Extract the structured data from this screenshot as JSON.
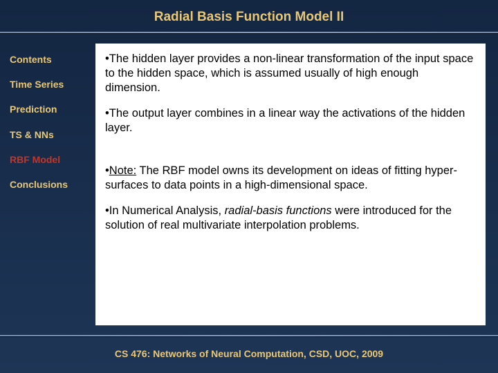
{
  "title": "Radial Basis Function Model II",
  "sidebar": {
    "items": [
      {
        "label": "Contents",
        "active": false
      },
      {
        "label": "Time Series",
        "active": false
      },
      {
        "label": "Prediction",
        "active": false
      },
      {
        "label": "TS & NNs",
        "active": false
      },
      {
        "label": "RBF Model",
        "active": true
      },
      {
        "label": "Conclusions",
        "active": false
      }
    ]
  },
  "content": {
    "bullets": [
      {
        "prefix": "•",
        "text": "The hidden layer provides a non-linear transformation of the input space to the hidden space, which is assumed usually of high enough dimension."
      },
      {
        "prefix": "•",
        "text": "The output layer combines in a linear way the activations of the hidden layer."
      },
      {
        "prefix": "•",
        "note_label": "Note:",
        "text_after_note": " The RBF model owns its development on ideas of fitting hyper-surfaces to data points in a high-dimensional space."
      },
      {
        "prefix": "•",
        "text_before_em": "In Numerical Analysis, ",
        "em_text": "radial-basis functions",
        "text_after_em": " were introduced for the solution of real multivariate interpolation problems."
      }
    ]
  },
  "footer": "CS 476: Networks of Neural Computation, CSD, UOC, 2009",
  "colors": {
    "background": "#1a2d4a",
    "accent_text": "#e8c878",
    "active_nav": "#c43528",
    "panel_bg": "#ffffff",
    "body_text": "#000000",
    "divider": "#7a8fb0"
  }
}
